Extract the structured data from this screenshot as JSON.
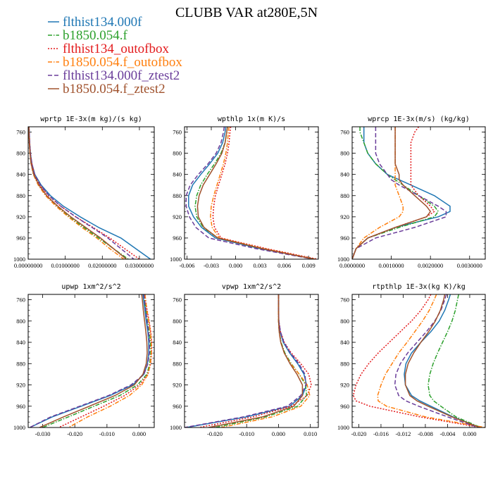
{
  "figure": {
    "title": "CLUBB VAR at280E,5N"
  },
  "colors": {
    "flthist134.000f": "#1f77b4",
    "b1850.054.f": "#2ca02c",
    "flthist134_outofbox": "#e31a1c",
    "b1850.054.f_outofbox": "#ff7f0e",
    "flthist134.000f_ztest2": "#6a3d9a",
    "b1850.054.f_ztest2": "#a0522d"
  },
  "legend": [
    {
      "name": "flthist134.000f",
      "color": "#1f77b4",
      "dash": ""
    },
    {
      "name": "b1850.054.f",
      "color": "#2ca02c",
      "dash": "6,2,1.5,2"
    },
    {
      "name": "flthist134_outofbox",
      "color": "#e31a1c",
      "dash": "2,2"
    },
    {
      "name": "b1850.054.f_outofbox",
      "color": "#ff7f0e",
      "dash": "6,2,1.5,2"
    },
    {
      "name": "flthist134.000f_ztest2",
      "color": "#6a3d9a",
      "dash": "6,3"
    },
    {
      "name": "b1850.054.f_ztest2",
      "color": "#a0522d",
      "dash": ""
    }
  ],
  "chart_data": [
    {
      "type": "line",
      "title": "wprtp  1E-3x(m kg)/(s kg)",
      "xlim": [
        0,
        0.034
      ],
      "ylim": [
        1000,
        750
      ],
      "xticks": [
        0,
        0.01,
        0.02,
        0.03
      ],
      "xticklabels": [
        "0.00000000",
        "0.01000000",
        "0.02000000",
        "0.03000000"
      ],
      "yticks": [
        760,
        800,
        840,
        880,
        920,
        960,
        1000
      ],
      "y": [
        750,
        760,
        780,
        800,
        820,
        840,
        860,
        880,
        900,
        920,
        940,
        960,
        980,
        1000
      ],
      "series": [
        {
          "name": "flthist134.000f",
          "x": [
            0.0002,
            0.0003,
            0.0004,
            0.0006,
            0.001,
            0.0018,
            0.0035,
            0.006,
            0.0095,
            0.014,
            0.019,
            0.025,
            0.029,
            0.033
          ]
        },
        {
          "name": "b1850.054.f",
          "x": [
            0.0002,
            0.0002,
            0.0003,
            0.0005,
            0.0008,
            0.0014,
            0.0028,
            0.0048,
            0.0078,
            0.011,
            0.015,
            0.019,
            0.023,
            0.027
          ]
        },
        {
          "name": "flthist134_outofbox",
          "x": [
            0.0002,
            0.0003,
            0.0004,
            0.0006,
            0.001,
            0.0017,
            0.0032,
            0.0055,
            0.0088,
            0.0128,
            0.0175,
            0.022,
            0.026,
            0.03
          ]
        },
        {
          "name": "b1850.054.f_outofbox",
          "x": [
            0.0002,
            0.0002,
            0.0003,
            0.0005,
            0.0008,
            0.0014,
            0.0027,
            0.0047,
            0.0075,
            0.0108,
            0.0145,
            0.0185,
            0.022,
            0.0258
          ]
        },
        {
          "name": "flthist134.000f_ztest2",
          "x": [
            0.0002,
            0.0003,
            0.0004,
            0.0006,
            0.001,
            0.0017,
            0.0033,
            0.0056,
            0.0088,
            0.0128,
            0.0172,
            0.0215,
            0.025,
            0.0285
          ]
        },
        {
          "name": "b1850.054.f_ztest2",
          "x": [
            0.0002,
            0.0002,
            0.0003,
            0.0005,
            0.0008,
            0.0015,
            0.0029,
            0.005,
            0.008,
            0.0115,
            0.0155,
            0.0195,
            0.023,
            0.0265
          ]
        }
      ]
    },
    {
      "type": "line",
      "title": "wpthlp  1x(m K)/s",
      "xlim": [
        -0.0063,
        0.0102
      ],
      "ylim": [
        1000,
        750
      ],
      "xticks": [
        -0.006,
        -0.003,
        0,
        0.003,
        0.006,
        0.009
      ],
      "xticklabels": [
        "-0.006",
        "-0.003",
        "0.000",
        "0.003",
        "0.006",
        "0.009"
      ],
      "yticks": [
        760,
        800,
        840,
        880,
        920,
        960,
        1000
      ],
      "y": [
        750,
        760,
        780,
        800,
        820,
        840,
        860,
        880,
        900,
        920,
        940,
        960,
        980,
        1000
      ],
      "series": [
        {
          "name": "flthist134.000f",
          "x": [
            -0.0012,
            -0.0013,
            -0.0016,
            -0.0022,
            -0.0032,
            -0.0043,
            -0.0053,
            -0.0058,
            -0.0058,
            -0.0052,
            -0.0042,
            -0.0025,
            0.003,
            0.0098
          ]
        },
        {
          "name": "b1850.054.f",
          "x": [
            -0.001,
            -0.0011,
            -0.0013,
            -0.0018,
            -0.0026,
            -0.0035,
            -0.0043,
            -0.0048,
            -0.005,
            -0.0048,
            -0.004,
            -0.0022,
            0.0032,
            0.0098
          ]
        },
        {
          "name": "flthist134_outofbox",
          "x": [
            -0.0006,
            -0.0007,
            -0.0008,
            -0.001,
            -0.0013,
            -0.0017,
            -0.0021,
            -0.0025,
            -0.0027,
            -0.0028,
            -0.0026,
            -0.0018,
            0.0038,
            0.0101
          ]
        },
        {
          "name": "b1850.054.f_outofbox",
          "x": [
            -0.0008,
            -0.0009,
            -0.001,
            -0.0012,
            -0.0015,
            -0.0019,
            -0.0023,
            -0.0027,
            -0.003,
            -0.0031,
            -0.0029,
            -0.002,
            0.0035,
            0.0098
          ]
        },
        {
          "name": "flthist134.000f_ztest2",
          "x": [
            -0.0014,
            -0.0015,
            -0.0018,
            -0.0024,
            -0.0034,
            -0.0046,
            -0.0056,
            -0.0061,
            -0.0061,
            -0.0057,
            -0.0049,
            -0.0033,
            0.0025,
            0.0096
          ]
        },
        {
          "name": "b1850.054.f_ztest2",
          "x": [
            -0.001,
            -0.0011,
            -0.0013,
            -0.0017,
            -0.0024,
            -0.0032,
            -0.004,
            -0.0045,
            -0.0047,
            -0.0046,
            -0.0039,
            -0.0022,
            0.0033,
            0.0097
          ]
        }
      ]
    },
    {
      "type": "line",
      "title": "wprcp  1E-3x(m/s) (kg/kg)",
      "xlim": [
        0,
        0.0034
      ],
      "ylim": [
        1000,
        750
      ],
      "xticks": [
        0,
        0.001,
        0.002,
        0.003
      ],
      "xticklabels": [
        "0.0000000",
        "0.0010000",
        "0.0020000",
        "0.0030000"
      ],
      "yticks": [
        760,
        800,
        840,
        880,
        920,
        960,
        1000
      ],
      "y": [
        750,
        760,
        780,
        800,
        820,
        840,
        850,
        860,
        880,
        900,
        910,
        920,
        940,
        960,
        980,
        1000
      ],
      "series": [
        {
          "name": "flthist134.000f",
          "x": [
            0.0003,
            0.0003,
            0.0003,
            0.0004,
            0.0006,
            0.0009,
            0.0012,
            0.0015,
            0.0021,
            0.0025,
            0.0025,
            0.0022,
            0.0011,
            0.0004,
            0.0001,
            0.0
          ]
        },
        {
          "name": "b1850.054.f",
          "x": [
            0.0002,
            0.0002,
            0.0003,
            0.0004,
            0.0006,
            0.0009,
            0.0011,
            0.0013,
            0.0017,
            0.0021,
            0.0022,
            0.0021,
            0.0012,
            0.0004,
            0.0001,
            0.0
          ]
        },
        {
          "name": "flthist134_outofbox",
          "x": [
            0.0017,
            0.0016,
            0.0015,
            0.0015,
            0.0015,
            0.0015,
            0.0015,
            0.0015,
            0.0017,
            0.002,
            0.0021,
            0.0019,
            0.0011,
            0.0004,
            0.0001,
            0.0
          ]
        },
        {
          "name": "b1850.054.f_outofbox",
          "x": [
            0.0011,
            0.0011,
            0.0011,
            0.0011,
            0.0011,
            0.0011,
            0.0011,
            0.0011,
            0.0012,
            0.0013,
            0.0013,
            0.0012,
            0.0007,
            0.0003,
            0.0001,
            0.0
          ]
        },
        {
          "name": "flthist134.000f_ztest2",
          "x": [
            0.0006,
            0.0006,
            0.0006,
            0.0006,
            0.0007,
            0.0009,
            0.001,
            0.0012,
            0.0017,
            0.0022,
            0.0024,
            0.0024,
            0.0016,
            0.0006,
            0.0001,
            0.0
          ]
        },
        {
          "name": "b1850.054.f_ztest2",
          "x": [
            0.0011,
            0.0011,
            0.0011,
            0.0011,
            0.0011,
            0.0012,
            0.0012,
            0.0013,
            0.0016,
            0.0019,
            0.002,
            0.0019,
            0.0011,
            0.0004,
            0.0001,
            0.0
          ]
        }
      ]
    },
    {
      "type": "line",
      "title": "upwp  1xm^2/s^2",
      "xlim": [
        -0.0345,
        0.0047
      ],
      "ylim": [
        1000,
        750
      ],
      "xticks": [
        -0.03,
        -0.02,
        -0.01,
        0
      ],
      "xticklabels": [
        "-0.030",
        "-0.020",
        "-0.010",
        "0.000"
      ],
      "yticks": [
        760,
        800,
        840,
        880,
        920,
        960,
        1000
      ],
      "y": [
        750,
        760,
        780,
        800,
        820,
        840,
        860,
        880,
        900,
        920,
        940,
        960,
        980,
        1000
      ],
      "series": [
        {
          "name": "flthist134.000f",
          "x": [
            0.0012,
            0.0014,
            0.0018,
            0.0022,
            0.0027,
            0.003,
            0.003,
            0.0026,
            0.0015,
            -0.002,
            -0.009,
            -0.018,
            -0.027,
            -0.034
          ]
        },
        {
          "name": "b1850.054.f",
          "x": [
            0.0015,
            0.0017,
            0.0021,
            0.0026,
            0.0031,
            0.0035,
            0.0036,
            0.0033,
            0.0024,
            -0.0005,
            -0.006,
            -0.014,
            -0.022,
            -0.03
          ]
        },
        {
          "name": "flthist134_outofbox",
          "x": [
            0.0018,
            0.002,
            0.0025,
            0.0031,
            0.0036,
            0.0039,
            0.0039,
            0.0036,
            0.0027,
            0.0002,
            -0.0045,
            -0.011,
            -0.018,
            -0.025
          ]
        },
        {
          "name": "b1850.054.f_outofbox",
          "x": [
            0.0018,
            0.002,
            0.0024,
            0.003,
            0.0035,
            0.0038,
            0.0038,
            0.0035,
            0.0028,
            0.0008,
            -0.003,
            -0.009,
            -0.016,
            -0.022
          ]
        },
        {
          "name": "flthist134.000f_ztest2",
          "x": [
            0.0015,
            0.0017,
            0.0021,
            0.0025,
            0.0029,
            0.0032,
            0.0032,
            0.0027,
            0.0015,
            -0.0025,
            -0.0095,
            -0.0185,
            -0.0275,
            -0.034
          ]
        },
        {
          "name": "b1850.054.f_ztest2",
          "x": [
            0.0008,
            0.001,
            0.0013,
            0.0017,
            0.0021,
            0.0024,
            0.0025,
            0.0022,
            0.0012,
            -0.0015,
            -0.0075,
            -0.0155,
            -0.0235,
            -0.031
          ]
        }
      ]
    },
    {
      "type": "line",
      "title": "vpwp  1xm^2/s^2",
      "xlim": [
        -0.0295,
        0.0125
      ],
      "ylim": [
        1000,
        750
      ],
      "xticks": [
        -0.02,
        -0.01,
        0,
        0.01
      ],
      "xticklabels": [
        "-0.020",
        "-0.010",
        "0.000",
        "0.010"
      ],
      "yticks": [
        760,
        800,
        840,
        880,
        920,
        960,
        1000
      ],
      "y": [
        750,
        760,
        780,
        800,
        820,
        840,
        860,
        880,
        900,
        920,
        940,
        960,
        980,
        1000
      ],
      "series": [
        {
          "name": "flthist134.000f",
          "x": [
            0.0,
            0.0,
            0.0,
            0.0001,
            0.0005,
            0.0015,
            0.0035,
            0.006,
            0.008,
            0.0088,
            0.0075,
            0.0035,
            -0.01,
            -0.029
          ]
        },
        {
          "name": "b1850.054.f",
          "x": [
            0.0,
            0.0,
            0.0,
            0.0,
            0.0002,
            0.0008,
            0.002,
            0.004,
            0.0065,
            0.0085,
            0.0088,
            0.006,
            -0.004,
            -0.02
          ]
        },
        {
          "name": "flthist134_outofbox",
          "x": [
            0.0,
            0.0,
            0.0,
            0.0001,
            0.0006,
            0.0018,
            0.004,
            0.007,
            0.0095,
            0.0103,
            0.009,
            0.004,
            -0.008,
            -0.025
          ]
        },
        {
          "name": "b1850.054.f_outofbox",
          "x": [
            0.0,
            0.0,
            0.0,
            0.0,
            0.0002,
            0.0007,
            0.0018,
            0.0038,
            0.0065,
            0.009,
            0.0098,
            0.007,
            -0.002,
            -0.018
          ]
        },
        {
          "name": "flthist134.000f_ztest2",
          "x": [
            0.0,
            0.0,
            0.0,
            0.0001,
            0.0006,
            0.0017,
            0.0038,
            0.0064,
            0.0083,
            0.0086,
            0.007,
            0.0028,
            -0.011,
            -0.0295
          ]
        },
        {
          "name": "b1850.054.f_ztest2",
          "x": [
            0.0,
            0.0,
            0.0,
            0.0,
            0.0002,
            0.0007,
            0.0018,
            0.0036,
            0.0058,
            0.0075,
            0.0075,
            0.0048,
            -0.005,
            -0.022
          ]
        }
      ]
    },
    {
      "type": "line",
      "title": "rtpthlp  1E-3x(kg K)/kg",
      "xlim": [
        -0.0212,
        0.0028
      ],
      "ylim": [
        1000,
        750
      ],
      "xticks": [
        -0.02,
        -0.016,
        -0.012,
        -0.008,
        -0.004,
        0
      ],
      "xticklabels": [
        "-0.020",
        "-0.016",
        "-0.012",
        "-0.008",
        "-0.004",
        "0.000"
      ],
      "yticks": [
        760,
        800,
        840,
        880,
        920,
        960,
        1000
      ],
      "y": [
        750,
        760,
        780,
        800,
        820,
        840,
        860,
        880,
        900,
        920,
        940,
        950,
        960,
        980,
        1000
      ],
      "series": [
        {
          "name": "flthist134.000f",
          "x": [
            -0.0035,
            -0.0038,
            -0.0045,
            -0.0055,
            -0.007,
            -0.0088,
            -0.0105,
            -0.0115,
            -0.0118,
            -0.0116,
            -0.0105,
            -0.009,
            -0.007,
            -0.003,
            0.0018
          ]
        },
        {
          "name": "b1850.054.f",
          "x": [
            -0.002,
            -0.0022,
            -0.0026,
            -0.0032,
            -0.004,
            -0.0049,
            -0.0058,
            -0.0066,
            -0.0072,
            -0.0075,
            -0.0072,
            -0.0065,
            -0.0052,
            -0.0025,
            0.002
          ]
        },
        {
          "name": "flthist134_outofbox",
          "x": [
            -0.007,
            -0.0075,
            -0.0088,
            -0.0105,
            -0.0125,
            -0.0145,
            -0.0165,
            -0.0182,
            -0.0196,
            -0.0205,
            -0.021,
            -0.0205,
            -0.018,
            -0.009,
            0.002
          ]
        },
        {
          "name": "b1850.054.f_outofbox",
          "x": [
            -0.006,
            -0.0064,
            -0.0073,
            -0.0085,
            -0.0099,
            -0.0113,
            -0.0128,
            -0.014,
            -0.0152,
            -0.016,
            -0.0166,
            -0.0165,
            -0.015,
            -0.008,
            0.0028
          ]
        },
        {
          "name": "flthist134.000f_ztest2",
          "x": [
            -0.0042,
            -0.0045,
            -0.0052,
            -0.0063,
            -0.0078,
            -0.0095,
            -0.0112,
            -0.0125,
            -0.0133,
            -0.0135,
            -0.0128,
            -0.0115,
            -0.0092,
            -0.004,
            0.0015
          ]
        },
        {
          "name": "b1850.054.f_ztest2",
          "x": [
            -0.0045,
            -0.0047,
            -0.0053,
            -0.0062,
            -0.0074,
            -0.0088,
            -0.0101,
            -0.0111,
            -0.0116,
            -0.0116,
            -0.0108,
            -0.0095,
            -0.0075,
            -0.0032,
            0.0018
          ]
        }
      ]
    }
  ]
}
